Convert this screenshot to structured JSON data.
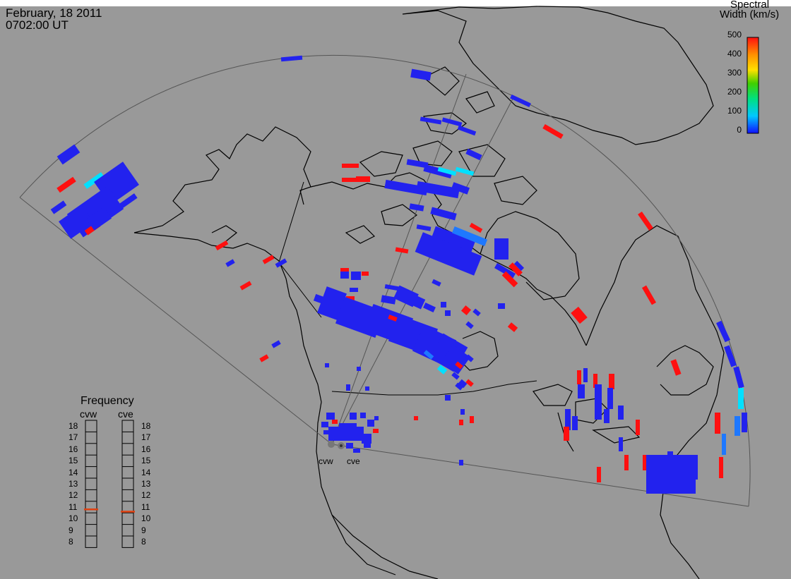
{
  "header": {
    "date": "February, 18 2011",
    "time": "0702:00 UT"
  },
  "colorbar": {
    "title_line1": "Spectral",
    "title_line2": "Width (km/s)",
    "ticks": [
      "500",
      "400",
      "300",
      "200",
      "100",
      "0"
    ],
    "min": 0,
    "max": 500,
    "colors": [
      "#1010ff",
      "#00c8ff",
      "#00e080",
      "#40d000",
      "#ffe000",
      "#ff9000",
      "#ff1010"
    ]
  },
  "frequency": {
    "title": "Frequency",
    "radars": [
      {
        "label": "cvw",
        "value_mhz": 10.8
      },
      {
        "label": "cve",
        "value_mhz": 10.6
      }
    ],
    "ticks": [
      "18",
      "17",
      "16",
      "15",
      "14",
      "13",
      "12",
      "11",
      "10",
      "9",
      "8"
    ],
    "indicator_color": "#e04010"
  },
  "radar_sites": [
    "cvw",
    "cve"
  ],
  "palette": {
    "background": "#999999",
    "blue": "#2222ee",
    "red": "#ff1010",
    "cyan": "#00e0ff",
    "lightblue": "#1e78ff"
  }
}
